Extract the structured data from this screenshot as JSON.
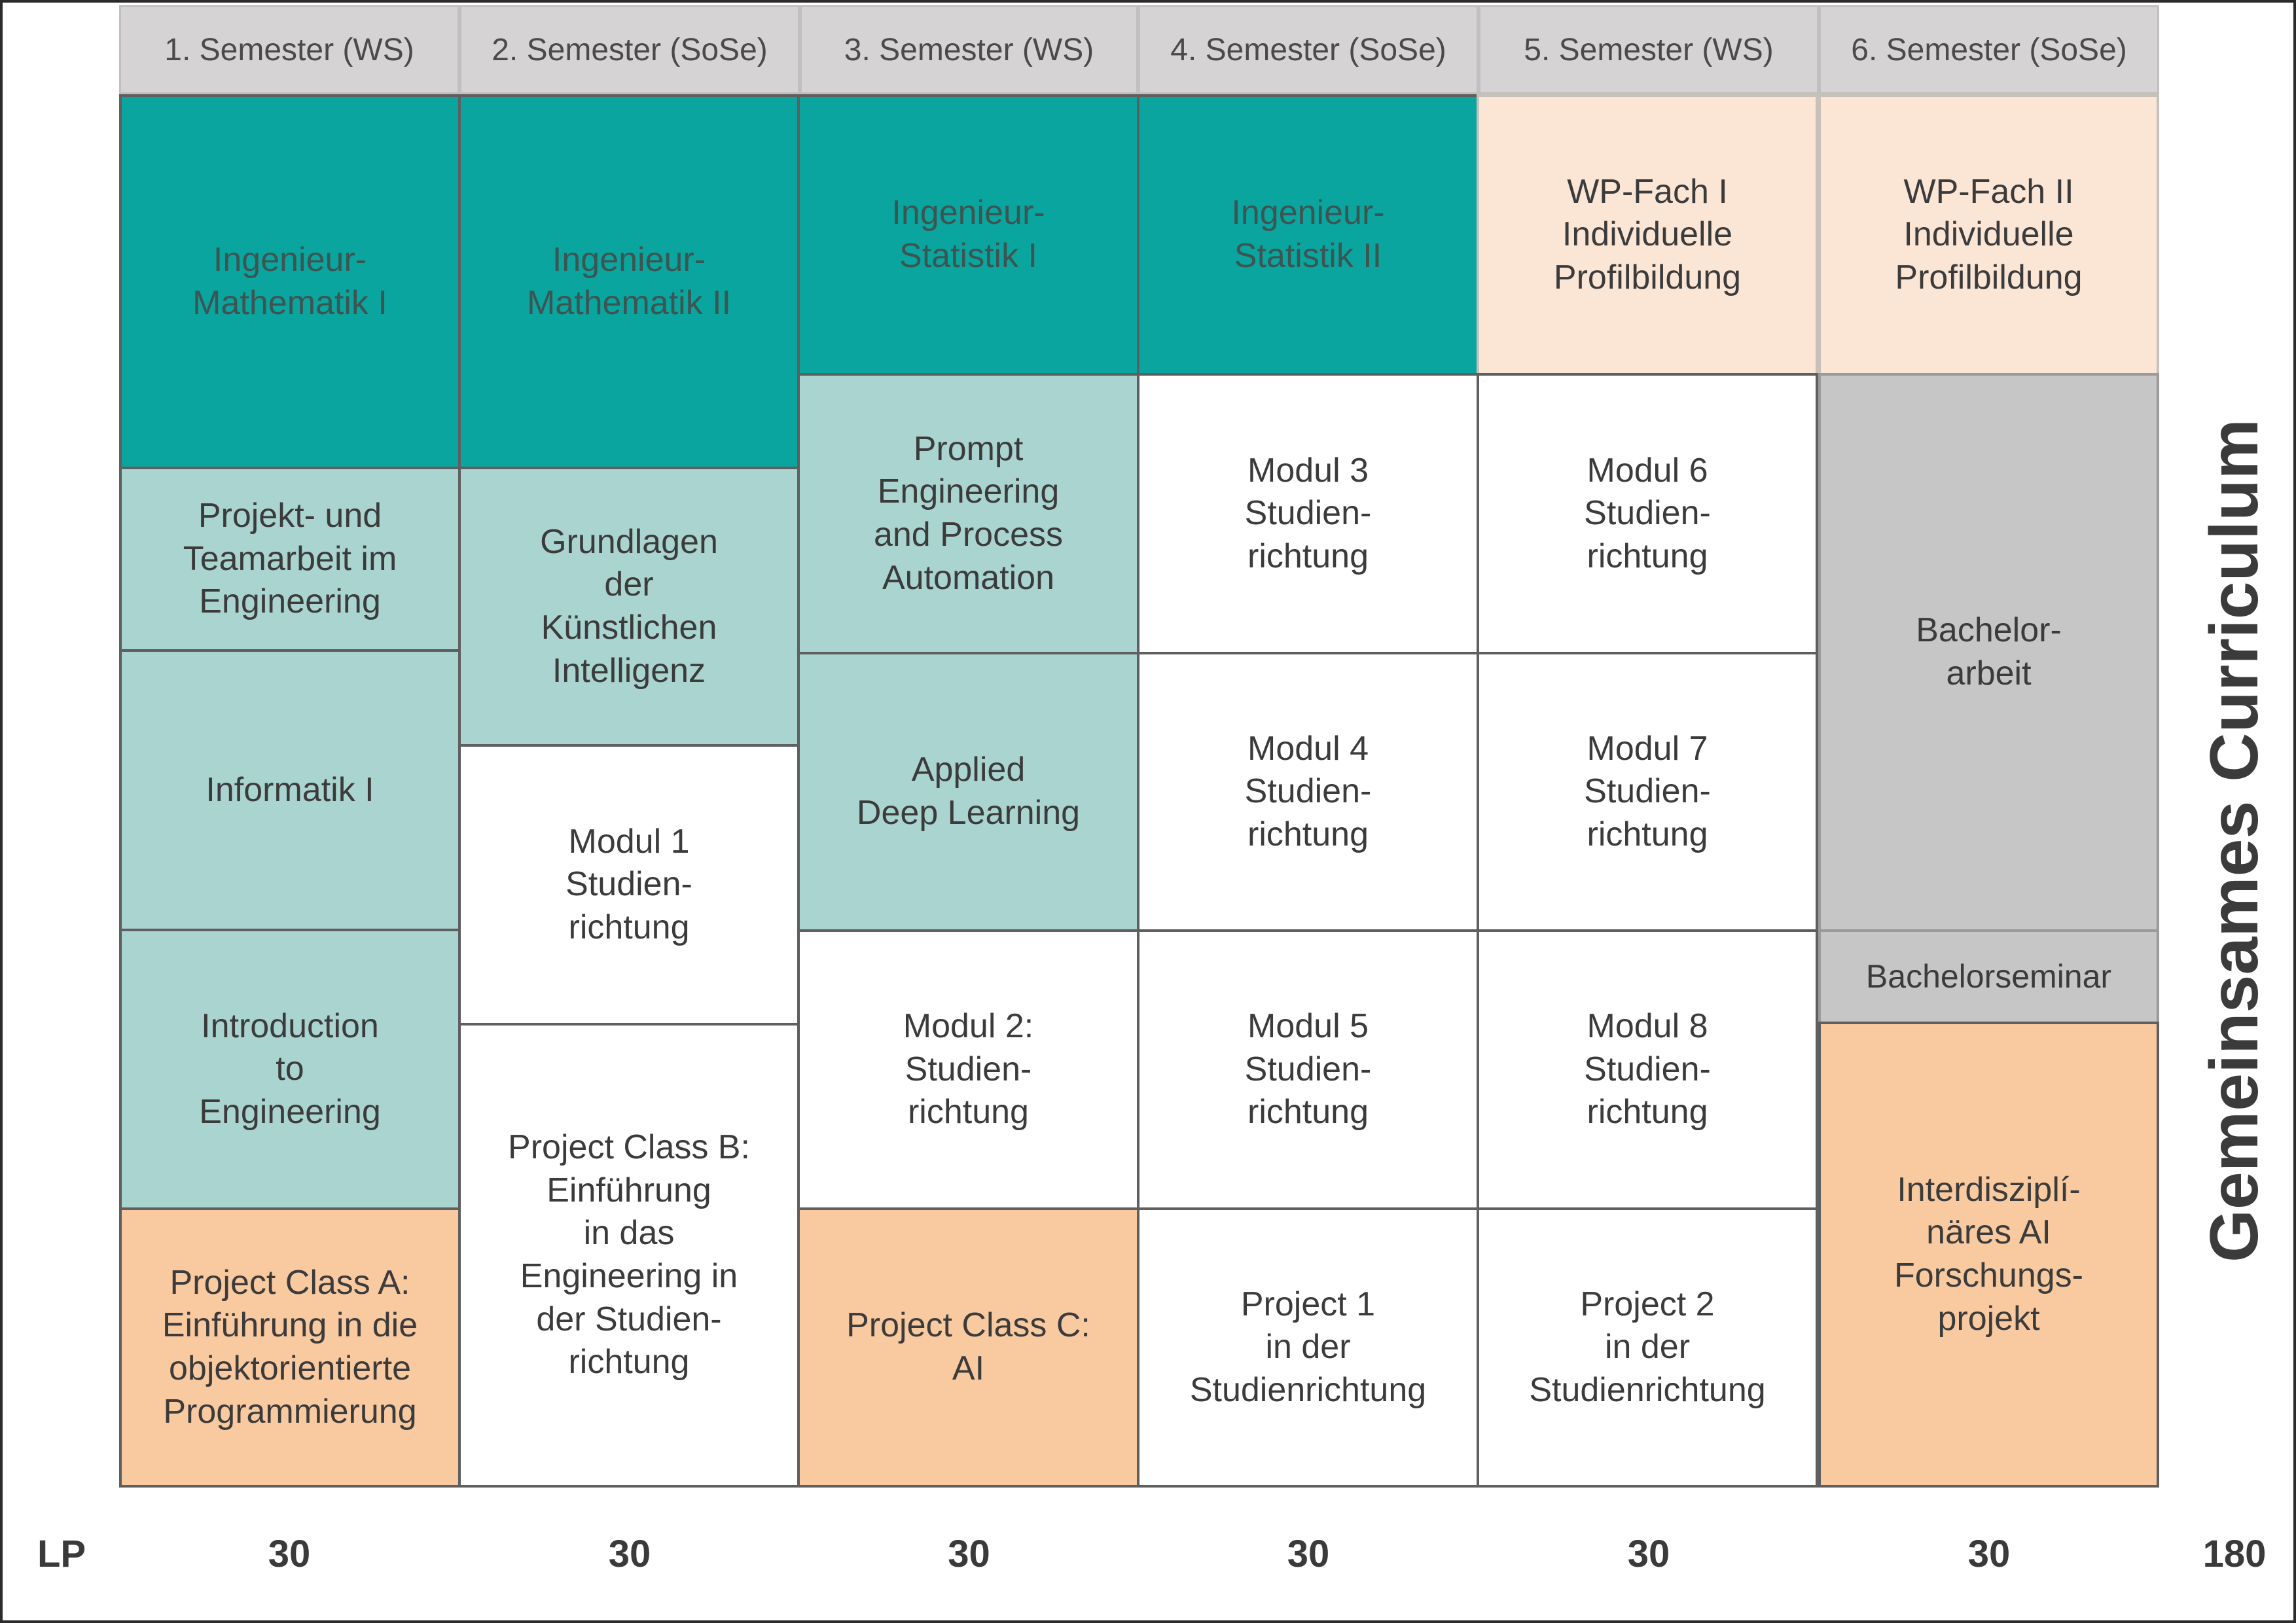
{
  "semesters": [
    "1. Semester (WS)",
    "2. Semester (SoSe)",
    "3. Semester (WS)",
    "4. Semester (SoSe)",
    "5. Semester (WS)",
    "6. Semester (SoSe)"
  ],
  "modules": {
    "s1": {
      "math1": "Ingenieur-\nMathematik I",
      "projekt_team": "Projekt- und\nTeamarbeit im\nEngineering",
      "informatik1": "Informatik I",
      "intro_eng": "Introduction\nto\nEngineering",
      "project_a": "Project Class A:\nEinführung in die\nobjektorientierte\nProgrammierung"
    },
    "s2": {
      "math2": "Ingenieur-\nMathematik II",
      "grundlagen_ki": "Grundlagen\nder\nKünstlichen\nIntelligenz",
      "modul1": "Modul 1\nStudien-\nrichtung",
      "project_b": "Project Class B:\nEinführung\nin das\nEngineering in\nder Studien-\nrichtung"
    },
    "s3": {
      "statistik1": "Ingenieur-\nStatistik I",
      "prompt_eng": "Prompt\nEngineering\nand Process\nAutomation",
      "deep_learning": "Applied\nDeep Learning",
      "modul2": "Modul 2:\nStudien-\nrichtung",
      "project_c": "Project Class C:\nAI"
    },
    "s4": {
      "statistik2": "Ingenieur-\nStatistik II",
      "modul3": "Modul 3\nStudien-\nrichtung",
      "modul4": "Modul 4\nStudien-\nrichtung",
      "modul5": "Modul 5\nStudien-\nrichtung",
      "project1": "Project 1\nin der\nStudienrichtung"
    },
    "s5": {
      "wp1": "WP-Fach I\nIndividuelle\nProfilbildung",
      "modul6": "Modul 6\nStudien-\nrichtung",
      "modul7": "Modul 7\nStudien-\nrichtung",
      "modul8": "Modul 8\nStudien-\nrichtung",
      "project2": "Project 2\nin der\nStudienrichtung"
    },
    "s6": {
      "wp2": "WP-Fach II\nIndividuelle\nProfilbildung",
      "bachelorarbeit": "Bachelor-\narbeit",
      "bachelorseminar": "Bachelorseminar",
      "forschungsprojekt": "Interdisziplí-\nnäres AI\nForschungs-\nprojekt"
    }
  },
  "lp": {
    "label": "LP",
    "values": [
      "30",
      "30",
      "30",
      "30",
      "30",
      "30"
    ],
    "total": "180"
  },
  "side_title": "Gemeinsames Curriculum",
  "colors": {
    "core_dark": "#0aa59e",
    "core_light": "#a9d4cf",
    "studienrichtung": "#ffffff",
    "wahlpflicht": "#fbe6d6",
    "project": "#f9c9a0",
    "bachelor": "#c6c6c6",
    "header": "#d6d3d4"
  }
}
